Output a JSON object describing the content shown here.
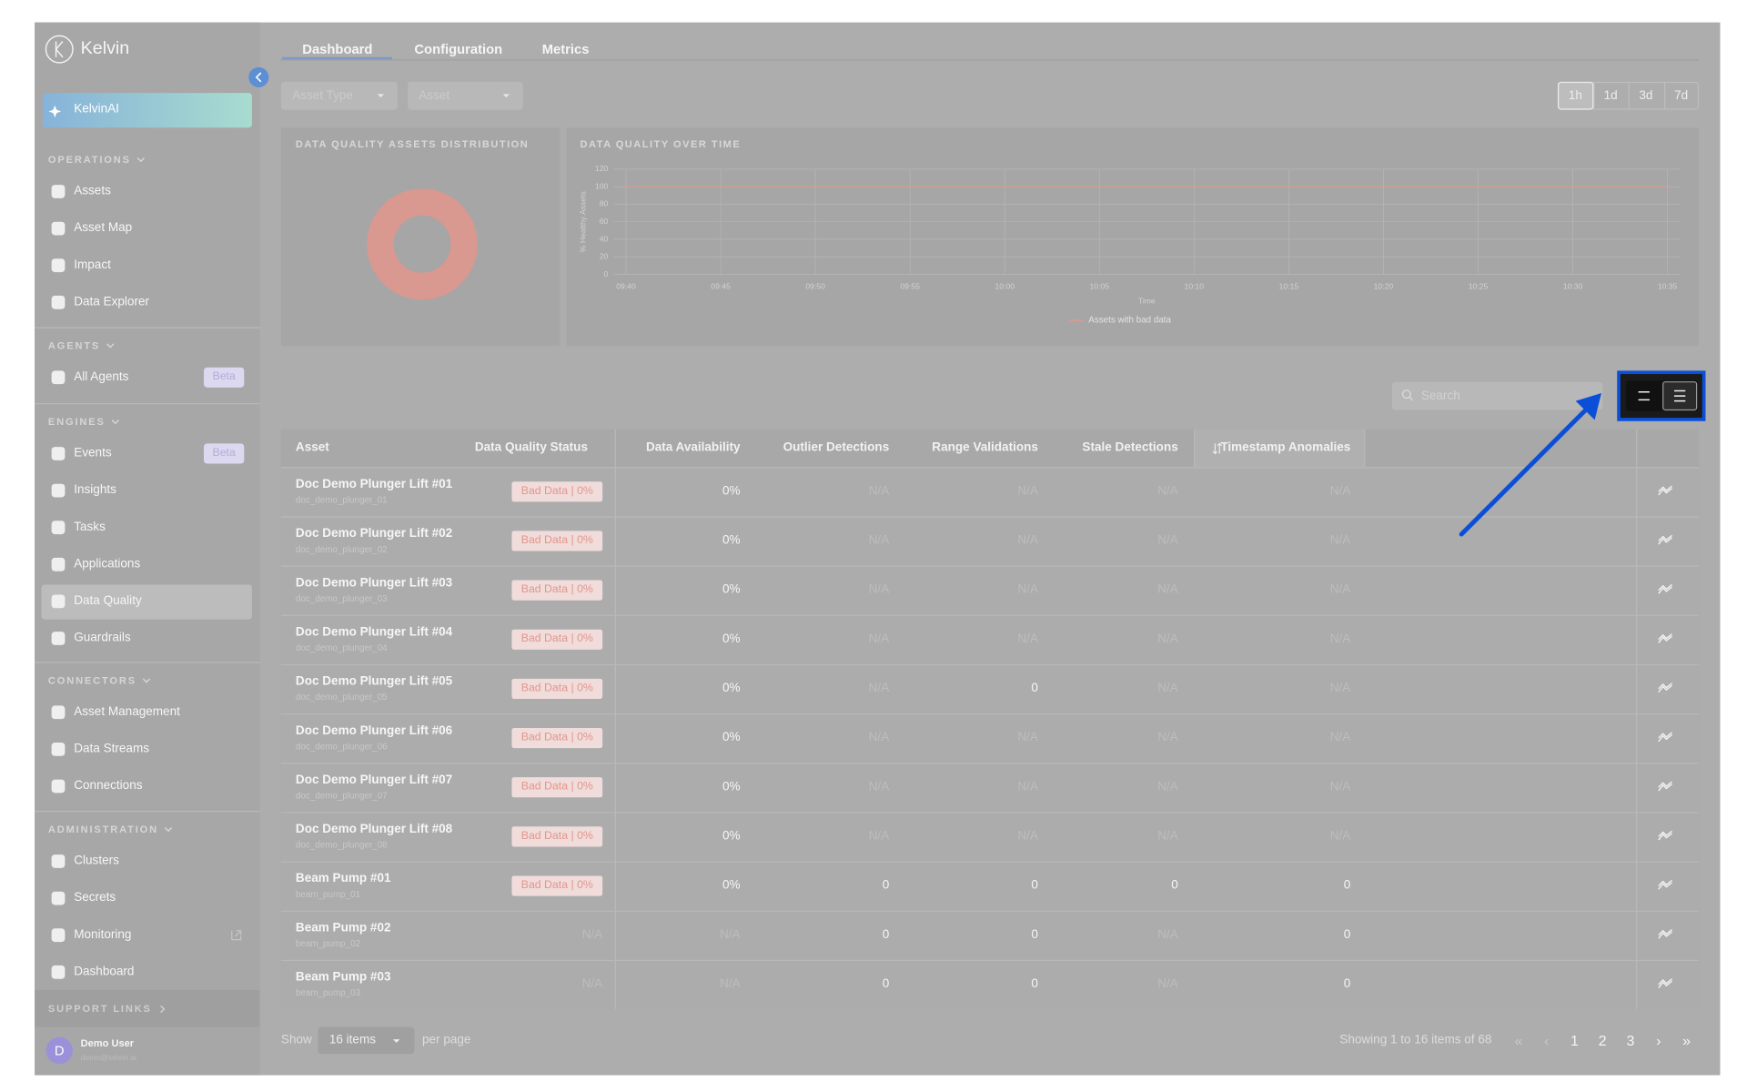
{
  "sidebar": {
    "brand": "Kelvin",
    "ai_button": "KelvinAI",
    "sections": [
      {
        "title": "OPERATIONS",
        "items": [
          {
            "label": "Assets"
          },
          {
            "label": "Asset Map"
          },
          {
            "label": "Impact"
          },
          {
            "label": "Data Explorer"
          }
        ]
      },
      {
        "title": "AGENTS",
        "items": [
          {
            "label": "All Agents",
            "badge": "Beta"
          }
        ]
      },
      {
        "title": "ENGINES",
        "items": [
          {
            "label": "Events",
            "badge": "Beta"
          },
          {
            "label": "Insights"
          },
          {
            "label": "Tasks"
          },
          {
            "label": "Applications"
          },
          {
            "label": "Data Quality",
            "active": true
          },
          {
            "label": "Guardrails"
          }
        ]
      },
      {
        "title": "CONNECTORS",
        "items": [
          {
            "label": "Asset Management"
          },
          {
            "label": "Data Streams"
          },
          {
            "label": "Connections"
          }
        ]
      },
      {
        "title": "ADMINISTRATION",
        "items": [
          {
            "label": "Clusters"
          },
          {
            "label": "Secrets"
          },
          {
            "label": "Monitoring",
            "external": true
          },
          {
            "label": "Dashboard"
          }
        ]
      }
    ],
    "support": "SUPPORT LINKS",
    "user": {
      "initial": "D",
      "name": "Demo User",
      "email": "demo@kelvin.ai"
    }
  },
  "tabs": {
    "items": [
      "Dashboard",
      "Configuration",
      "Metrics"
    ],
    "active": 0
  },
  "filters": [
    "Asset Type",
    "Asset"
  ],
  "time_ranges": {
    "items": [
      "1h",
      "1d",
      "3d",
      "7d"
    ],
    "active": 0
  },
  "panels": {
    "distribution": {
      "title": "DATA QUALITY ASSETS DISTRIBUTION"
    },
    "over_time": {
      "title": "DATA QUALITY OVER TIME",
      "chart": {
        "type": "line",
        "x_label": "Time",
        "y_label": "% Healthy Assets",
        "categories": [
          "09:40",
          "09:45",
          "09:50",
          "09:55",
          "10:00",
          "10:05",
          "10:10",
          "10:15",
          "10:20",
          "10:25",
          "10:30",
          "10:35"
        ],
        "series": [
          {
            "name": "Assets with bad data",
            "color": "#d89a92",
            "values": [
              100,
              100,
              100,
              100,
              100,
              100,
              100,
              100,
              100,
              100,
              100,
              100
            ]
          }
        ],
        "ylim": [
          0,
          120
        ],
        "yticks": [
          0,
          20,
          40,
          60,
          80,
          100,
          120
        ],
        "grid": true
      }
    }
  },
  "search_placeholder": "Search",
  "table": {
    "headers": [
      "Asset",
      "Data Quality Status",
      "Data Availability",
      "Outlier Detections",
      "Range Validations",
      "Stale Detections",
      "Timestamp Anomalies"
    ],
    "rows": [
      {
        "name": "Doc Demo Plunger Lift #01",
        "id": "doc_demo_plunger_01",
        "badge": true,
        "cells": [
          "Bad Data | 0%",
          "0%",
          "N/A",
          "N/A",
          "N/A",
          "N/A"
        ]
      },
      {
        "name": "Doc Demo Plunger Lift #02",
        "id": "doc_demo_plunger_02",
        "badge": true,
        "cells": [
          "Bad Data | 0%",
          "0%",
          "N/A",
          "N/A",
          "N/A",
          "N/A"
        ]
      },
      {
        "name": "Doc Demo Plunger Lift #03",
        "id": "doc_demo_plunger_03",
        "badge": true,
        "cells": [
          "Bad Data | 0%",
          "0%",
          "N/A",
          "N/A",
          "N/A",
          "N/A"
        ]
      },
      {
        "name": "Doc Demo Plunger Lift #04",
        "id": "doc_demo_plunger_04",
        "badge": true,
        "cells": [
          "Bad Data | 0%",
          "0%",
          "N/A",
          "N/A",
          "N/A",
          "N/A"
        ]
      },
      {
        "name": "Doc Demo Plunger Lift #05",
        "id": "doc_demo_plunger_05",
        "badge": true,
        "cells": [
          "Bad Data | 0%",
          "0%",
          "N/A",
          "0",
          "N/A",
          "N/A"
        ]
      },
      {
        "name": "Doc Demo Plunger Lift #06",
        "id": "doc_demo_plunger_06",
        "badge": true,
        "cells": [
          "Bad Data | 0%",
          "0%",
          "N/A",
          "N/A",
          "N/A",
          "N/A"
        ]
      },
      {
        "name": "Doc Demo Plunger Lift #07",
        "id": "doc_demo_plunger_07",
        "badge": true,
        "cells": [
          "Bad Data | 0%",
          "0%",
          "N/A",
          "N/A",
          "N/A",
          "N/A"
        ]
      },
      {
        "name": "Doc Demo Plunger Lift #08",
        "id": "doc_demo_plunger_08",
        "badge": true,
        "cells": [
          "Bad Data | 0%",
          "0%",
          "N/A",
          "N/A",
          "N/A",
          "N/A"
        ]
      },
      {
        "name": "Beam Pump #01",
        "id": "beam_pump_01",
        "badge": true,
        "cells": [
          "Bad Data | 0%",
          "0%",
          "0",
          "0",
          "0",
          "0"
        ]
      },
      {
        "name": "Beam Pump #02",
        "id": "beam_pump_02",
        "badge": false,
        "cells": [
          "N/A",
          "N/A",
          "0",
          "0",
          "N/A",
          "0"
        ]
      },
      {
        "name": "Beam Pump #03",
        "id": "beam_pump_03",
        "badge": false,
        "cells": [
          "N/A",
          "N/A",
          "0",
          "0",
          "N/A",
          "0"
        ]
      }
    ]
  },
  "footer": {
    "show": "Show",
    "page_size": "16 items",
    "per_page": "per page",
    "summary": "Showing 1 to 16 items of 68",
    "pagination": {
      "first": "«",
      "prev": "‹",
      "pages": [
        "1",
        "2",
        "3"
      ],
      "next": "›",
      "last": "»"
    }
  }
}
